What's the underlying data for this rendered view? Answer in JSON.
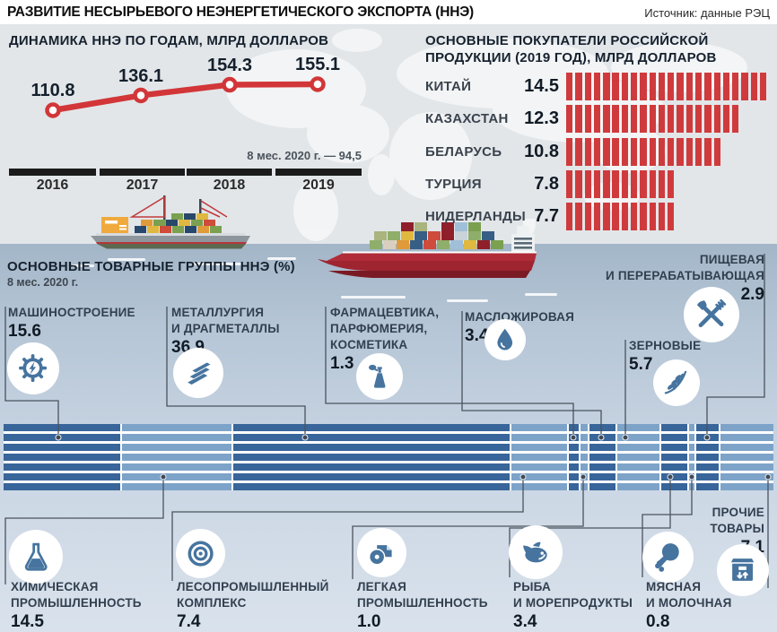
{
  "page": {
    "title": "РАЗВИТИЕ НЕСЫРЬЕВОГО НЕЭНЕРГЕТИЧЕСКОГО ЭКСПОРТА (ННЭ)",
    "source": "Источник: данные РЭЦ"
  },
  "colors": {
    "red": "#cf3b3d",
    "segment_dark": "#38659a",
    "segment_light": "#7ea3c8",
    "icon_blue": "#46749f"
  },
  "line_chart": {
    "title": "ДИНАМИКА ННЭ ПО ГОДАМ, МЛРД ДОЛЛАРОВ",
    "note": "8 мес. 2020 г. — 94,5",
    "points": [
      {
        "year": "2016",
        "value": 110.8,
        "label": "110.8"
      },
      {
        "year": "2017",
        "value": 136.1,
        "label": "136.1"
      },
      {
        "year": "2018",
        "value": 154.3,
        "label": "154.3"
      },
      {
        "year": "2019",
        "value": 155.1,
        "label": "155.1"
      }
    ]
  },
  "buyers_chart": {
    "title_line1": "ОСНОВНЫЕ ПОКУПАТЕЛИ РОССИЙСКОЙ",
    "title_line2": "ПРОДУКЦИИ (2019 ГОД), МЛРД ДОЛЛАРОВ",
    "rows": [
      {
        "label": "КИТАЙ",
        "value": 14.5,
        "value_label": "14.5"
      },
      {
        "label": "КАЗАХСТАН",
        "value": 12.3,
        "value_label": "12.3"
      },
      {
        "label": "БЕЛАРУСЬ",
        "value": 10.8,
        "value_label": "10.8"
      },
      {
        "label": "ТУРЦИЯ",
        "value": 7.8,
        "value_label": "7.8"
      },
      {
        "label": "НИДЕРЛАНДЫ",
        "value": 7.7,
        "value_label": "7.7"
      }
    ]
  },
  "groups_chart": {
    "title": "ОСНОВНЫЕ ТОВАРНЫЕ ГРУППЫ ННЭ (%)",
    "subtitle": "8 мес. 2020 г.",
    "segments": [
      {
        "id": "mash",
        "shade": "dark",
        "value": 15.6,
        "value_label": "15.6",
        "name_lines": [
          "МАШИНОСТРОЕНИЕ"
        ],
        "icon": "gear"
      },
      {
        "id": "chem",
        "shade": "light",
        "value": 14.5,
        "value_label": "14.5",
        "name_lines": [
          "ХИМИЧЕСКАЯ",
          "ПРОМЫШЛЕННОСТЬ"
        ],
        "icon": "flask"
      },
      {
        "id": "metal",
        "shade": "dark",
        "value": 36.9,
        "value_label": "36.9",
        "name_lines": [
          "МЕТАЛЛУРГИЯ",
          "И ДРАГМЕТАЛЛЫ"
        ],
        "icon": "ingots"
      },
      {
        "id": "les",
        "shade": "light",
        "value": 7.4,
        "value_label": "7.4",
        "name_lines": [
          "ЛЕСОПРОМЫШЛЕННЫЙ",
          "КОМПЛЕКС"
        ],
        "icon": "timber"
      },
      {
        "id": "pharm",
        "shade": "dark",
        "value": 1.3,
        "value_label": "1.3",
        "name_lines": [
          "ФАРМАЦЕВТИКА,",
          "ПАРФЮМЕРИЯ,",
          "КОСМЕТИКА"
        ],
        "icon": "perfume"
      },
      {
        "id": "leg",
        "shade": "light",
        "value": 1.0,
        "value_label": "1.0",
        "name_lines": [
          "ЛЕГКАЯ",
          "ПРОМЫШЛЕННОСТЬ"
        ],
        "icon": "roll"
      },
      {
        "id": "maslo",
        "shade": "dark",
        "value": 3.4,
        "value_label": "3.4",
        "name_lines": [
          "МАСЛОЖИРОВАЯ"
        ],
        "icon": "drop"
      },
      {
        "id": "zern",
        "shade": "light",
        "value": 5.7,
        "value_label": "5.7",
        "name_lines": [
          "ЗЕРНОВЫЕ"
        ],
        "icon": "wheat"
      },
      {
        "id": "fish",
        "shade": "dark",
        "value": 3.4,
        "value_label": "3.4",
        "name_lines": [
          "РЫБА",
          "И МОРЕПРОДУКТЫ"
        ],
        "icon": "fish"
      },
      {
        "id": "meat",
        "shade": "light",
        "value": 0.8,
        "value_label": "0.8",
        "name_lines": [
          "МЯСНАЯ",
          "И МОЛОЧНАЯ"
        ],
        "icon": "drumstick"
      },
      {
        "id": "pishch",
        "shade": "dark",
        "value": 2.9,
        "value_label": "2.9",
        "name_lines": [
          "ПИЩЕВАЯ",
          "И ПЕРЕРАБАТЫВАЮЩАЯ"
        ],
        "icon": "cutlery"
      },
      {
        "id": "other",
        "shade": "light",
        "value": 7.1,
        "value_label": "7,1",
        "name_lines": [
          "ПРОЧИЕ",
          "ТОВАРЫ"
        ],
        "icon": "package"
      }
    ]
  },
  "chart_data": [
    {
      "type": "line",
      "title": "ДИНАМИКА ННЭ ПО ГОДАМ, МЛРД ДОЛЛАРОВ",
      "x": [
        "2016",
        "2017",
        "2018",
        "2019"
      ],
      "values": [
        110.8,
        136.1,
        154.3,
        155.1
      ],
      "annotation": "8 мес. 2020 г. — 94,5",
      "unit": "млрд долларов",
      "legend_position": "none",
      "grid": false
    },
    {
      "type": "bar",
      "orientation": "horizontal",
      "title": "ОСНОВНЫЕ ПОКУПАТЕЛИ РОССИЙСКОЙ ПРОДУКЦИИ (2019 ГОД), МЛРД ДОЛЛАРОВ",
      "categories": [
        "КИТАЙ",
        "КАЗАХСТАН",
        "БЕЛАРУСЬ",
        "ТУРЦИЯ",
        "НИДЕРЛАНДЫ"
      ],
      "values": [
        14.5,
        12.3,
        10.8,
        7.8,
        7.7
      ],
      "unit": "млрд долларов"
    },
    {
      "type": "bar",
      "subtype": "stacked-percent",
      "title": "ОСНОВНЫЕ ТОВАРНЫЕ ГРУППЫ ННЭ (%)",
      "period": "8 мес. 2020 г.",
      "categories": [
        "Машиностроение",
        "Химическая промышленность",
        "Металлургия и драгметаллы",
        "Лесопромышленный комплекс",
        "Фармацевтика, парфюмерия, косметика",
        "Легкая промышленность",
        "Масложировая",
        "Зерновые",
        "Рыба и морепродукты",
        "Мясная и молочная",
        "Пищевая и перерабатывающая",
        "Прочие товары"
      ],
      "values": [
        15.6,
        14.5,
        36.9,
        7.4,
        1.3,
        1.0,
        3.4,
        5.7,
        3.4,
        0.8,
        2.9,
        7.1
      ]
    }
  ]
}
